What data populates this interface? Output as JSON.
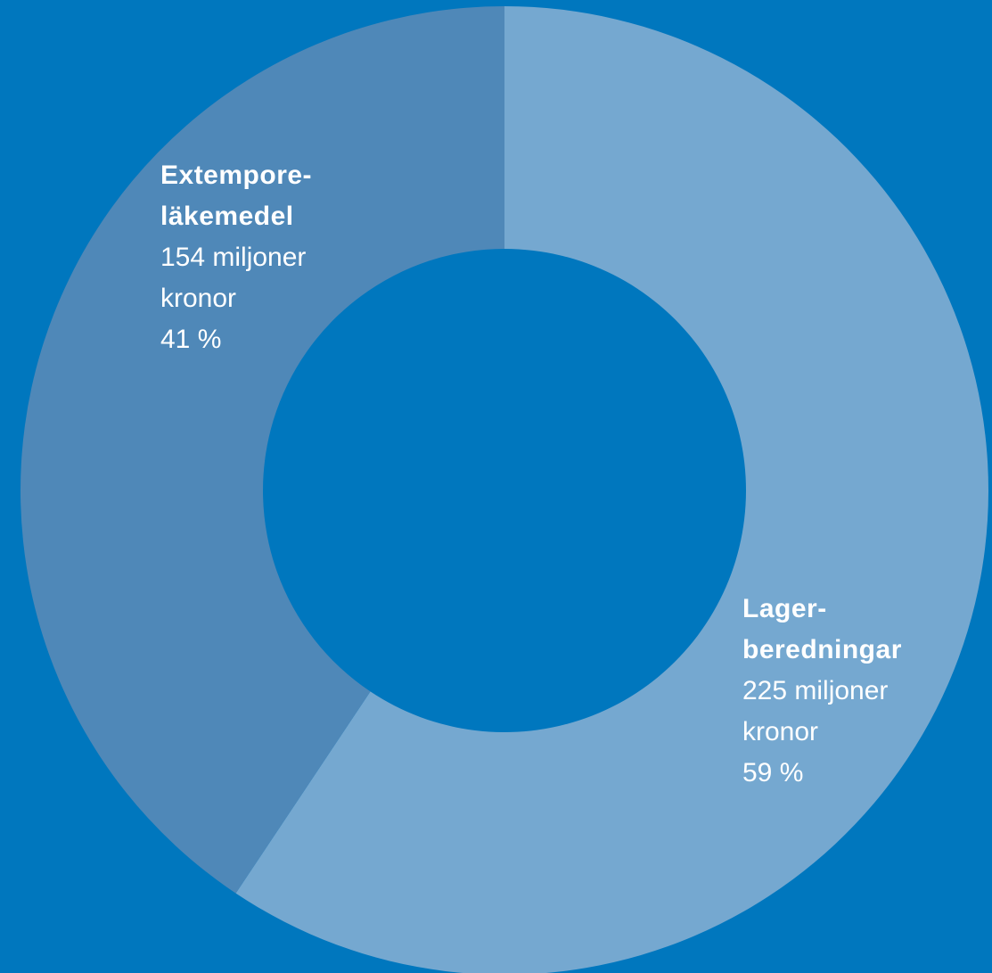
{
  "chart_data": {
    "type": "donut",
    "categories": [
      "Lager-\nberedningar",
      "Extempore-\nläkemedel"
    ],
    "values": [
      225,
      154
    ],
    "value_labels": [
      "225 miljoner kronor",
      "154 miljoner kronor"
    ],
    "percentages": [
      {
        "value": 59,
        "label": "59 %"
      },
      {
        "value": 41,
        "label": "41 %"
      }
    ],
    "colors": [
      "#75a8d0",
      "#4f88b8"
    ],
    "background": "#0077be"
  }
}
